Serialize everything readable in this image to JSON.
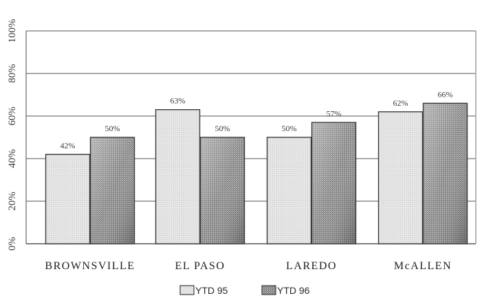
{
  "chart_data": {
    "type": "bar",
    "categories": [
      "BROWNSVILLE",
      "EL PASO",
      "LAREDO",
      "McALLEN"
    ],
    "series": [
      {
        "name": "YTD 95",
        "values": [
          42,
          63,
          50,
          62
        ],
        "labels": [
          "42%",
          "63%",
          "50%",
          "62%"
        ]
      },
      {
        "name": "YTD 96",
        "values": [
          50,
          50,
          57,
          66
        ],
        "labels": [
          "50%",
          "50%",
          "57%",
          "66%"
        ]
      }
    ],
    "y_ticks": [
      "0%",
      "20%",
      "40%",
      "60%",
      "80%",
      "100%"
    ],
    "ylim": [
      0,
      100
    ],
    "grid": true,
    "legend_position": "bottom"
  }
}
